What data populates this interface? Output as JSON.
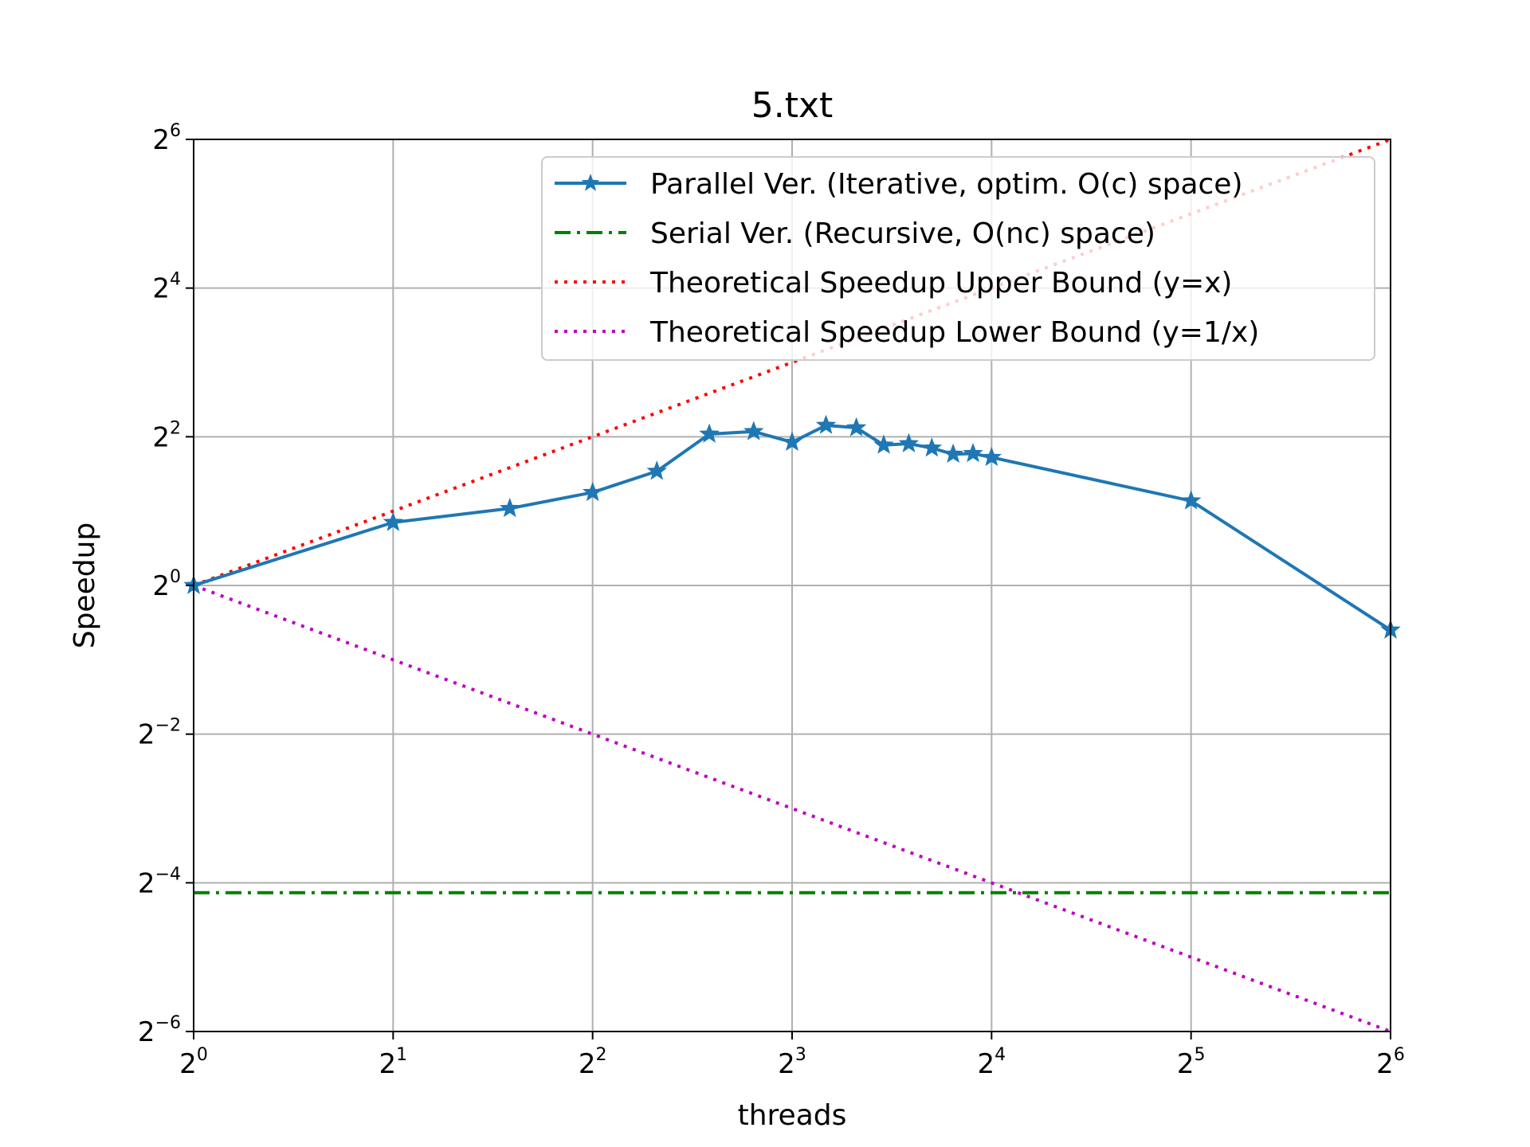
{
  "chart_data": {
    "type": "line",
    "title": "5.txt",
    "xlabel": "threads",
    "ylabel": "Speedup",
    "xscale": "log2",
    "yscale": "log2",
    "xlim": [
      1,
      64
    ],
    "ylim": [
      0.015625,
      64
    ],
    "xticks": [
      {
        "base": "2",
        "exp": "0",
        "value": 1
      },
      {
        "base": "2",
        "exp": "1",
        "value": 2
      },
      {
        "base": "2",
        "exp": "2",
        "value": 4
      },
      {
        "base": "2",
        "exp": "3",
        "value": 8
      },
      {
        "base": "2",
        "exp": "4",
        "value": 16
      },
      {
        "base": "2",
        "exp": "5",
        "value": 32
      },
      {
        "base": "2",
        "exp": "6",
        "value": 64
      }
    ],
    "yticks": [
      {
        "base": "2",
        "exp": "−6",
        "value": 0.015625
      },
      {
        "base": "2",
        "exp": "−4",
        "value": 0.0625
      },
      {
        "base": "2",
        "exp": "−2",
        "value": 0.25
      },
      {
        "base": "2",
        "exp": "0",
        "value": 1
      },
      {
        "base": "2",
        "exp": "2",
        "value": 4
      },
      {
        "base": "2",
        "exp": "4",
        "value": 16
      },
      {
        "base": "2",
        "exp": "6",
        "value": 64
      }
    ],
    "grid": true,
    "legend_position": "top-right",
    "series": [
      {
        "name": "Parallel Ver. (Iterative, optim. O(c) space)",
        "color": "#1f77b4",
        "style": "solid",
        "marker": "star",
        "x": [
          1,
          2,
          3,
          4,
          5,
          6,
          7,
          8,
          9,
          10,
          11,
          12,
          13,
          14,
          15,
          16,
          32,
          64
        ],
        "y": [
          1.0,
          1.8,
          2.05,
          2.38,
          2.9,
          4.1,
          4.2,
          3.8,
          4.45,
          4.35,
          3.7,
          3.75,
          3.6,
          3.4,
          3.42,
          3.3,
          2.2,
          0.66
        ]
      },
      {
        "name": "Serial Ver. (Recursive, O(nc) space)",
        "color": "#008000",
        "style": "dashdot",
        "x": [
          1,
          64
        ],
        "y": [
          0.057,
          0.057
        ]
      },
      {
        "name": "Theoretical Speedup Upper Bound (y=x)",
        "color": "#ff0000",
        "style": "dotted",
        "x": [
          1,
          64
        ],
        "y": [
          1,
          64
        ]
      },
      {
        "name": "Theoretical Speedup Lower Bound (y=1/x)",
        "color": "#bf00bf",
        "style": "dotted",
        "x": [
          1,
          64
        ],
        "y": [
          1,
          0.015625
        ]
      }
    ]
  }
}
